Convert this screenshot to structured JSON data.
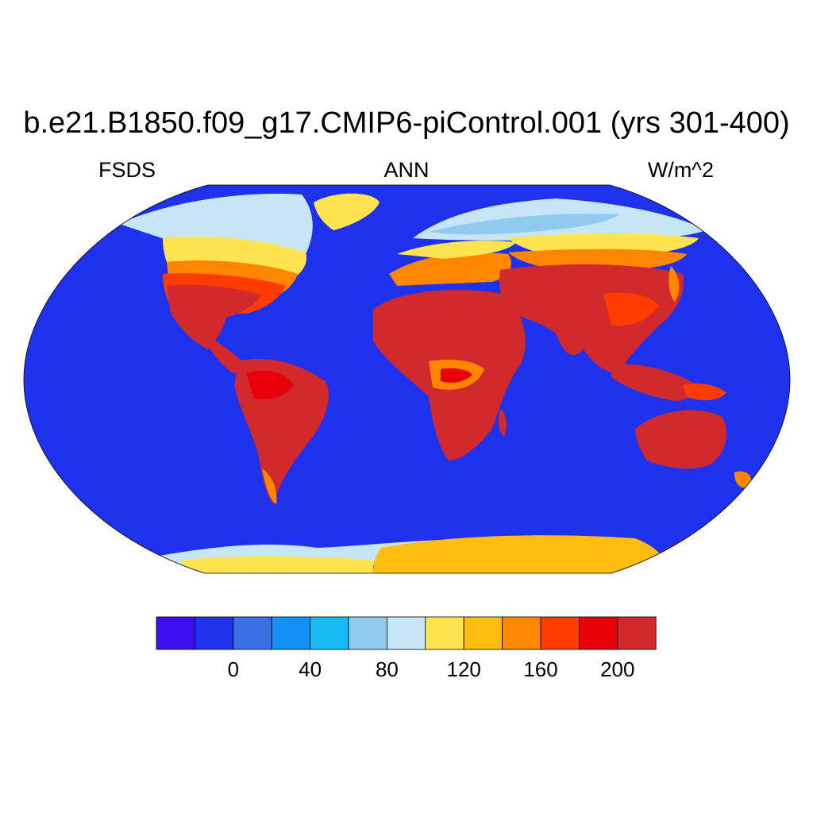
{
  "title": "b.e21.B1850.f09_g17.CMIP6-piControl.001 (yrs 301-400)",
  "subtitle_left": "FSDS",
  "subtitle_center": "ANN",
  "subtitle_right": "W/m^2",
  "map": {
    "projection": "Robinson",
    "ocean_color": "#1e32ee",
    "fields": {
      "tropics": "#d22a2c",
      "warm": "#e8000b",
      "orange_red": "#ff3b00",
      "orange": "#ff8600",
      "amber": "#ffbd10",
      "yellow": "#ffe450",
      "light_blue": "#c6e6f8",
      "sky": "#90cbef"
    }
  },
  "colorbar": {
    "levels": [
      -20,
      0,
      20,
      40,
      60,
      80,
      100,
      120,
      140,
      160,
      180,
      200,
      220
    ],
    "colors": [
      "#3b0ff0",
      "#1e32ee",
      "#3a6fe6",
      "#1491f6",
      "#16bbf6",
      "#90cbef",
      "#c6e6f8",
      "#ffe450",
      "#ffbd10",
      "#ff8600",
      "#ff3b00",
      "#e8000b",
      "#d22a2c"
    ],
    "tick_labels": [
      "0",
      "40",
      "80",
      "120",
      "160",
      "200"
    ]
  }
}
